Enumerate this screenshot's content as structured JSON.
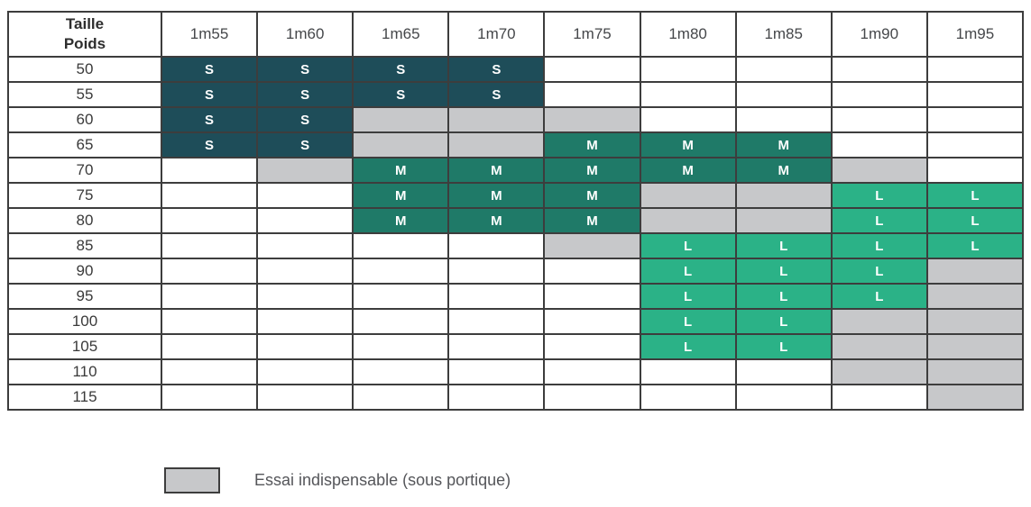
{
  "table": {
    "corner_line1": "Taille",
    "corner_line2": "Poids",
    "columns": [
      "1m55",
      "1m60",
      "1m65",
      "1m70",
      "1m75",
      "1m80",
      "1m85",
      "1m90",
      "1m95"
    ],
    "rows": [
      {
        "weight": "50",
        "cells": [
          "S",
          "S",
          "S",
          "S",
          "",
          "",
          "",
          "",
          ""
        ]
      },
      {
        "weight": "55",
        "cells": [
          "S",
          "S",
          "S",
          "S",
          "",
          "",
          "",
          "",
          ""
        ]
      },
      {
        "weight": "60",
        "cells": [
          "S",
          "S",
          "E",
          "E",
          "E",
          "",
          "",
          "",
          ""
        ]
      },
      {
        "weight": "65",
        "cells": [
          "S",
          "S",
          "E",
          "E",
          "M",
          "M",
          "M",
          "",
          ""
        ]
      },
      {
        "weight": "70",
        "cells": [
          "",
          "E",
          "M",
          "M",
          "M",
          "M",
          "M",
          "E",
          ""
        ]
      },
      {
        "weight": "75",
        "cells": [
          "",
          "",
          "M",
          "M",
          "M",
          "E",
          "E",
          "L",
          "L"
        ]
      },
      {
        "weight": "80",
        "cells": [
          "",
          "",
          "M",
          "M",
          "M",
          "E",
          "E",
          "L",
          "L"
        ]
      },
      {
        "weight": "85",
        "cells": [
          "",
          "",
          "",
          "",
          "E",
          "L",
          "L",
          "L",
          "L"
        ]
      },
      {
        "weight": "90",
        "cells": [
          "",
          "",
          "",
          "",
          "",
          "L",
          "L",
          "L",
          "E"
        ]
      },
      {
        "weight": "95",
        "cells": [
          "",
          "",
          "",
          "",
          "",
          "L",
          "L",
          "L",
          "E"
        ]
      },
      {
        "weight": "100",
        "cells": [
          "",
          "",
          "",
          "",
          "",
          "L",
          "L",
          "E",
          "E"
        ]
      },
      {
        "weight": "105",
        "cells": [
          "",
          "",
          "",
          "",
          "",
          "L",
          "L",
          "E",
          "E"
        ]
      },
      {
        "weight": "110",
        "cells": [
          "",
          "",
          "",
          "",
          "",
          "",
          "",
          "E",
          "E"
        ]
      },
      {
        "weight": "115",
        "cells": [
          "",
          "",
          "",
          "",
          "",
          "",
          "",
          "",
          "E"
        ]
      }
    ],
    "cell_codes": {
      "S": "size S",
      "M": "size M",
      "L": "size L",
      "E": "essai indispensable (gray cell, no text)",
      "": "empty white cell"
    }
  },
  "legend": {
    "label": "Essai indispensable (sous portique)"
  },
  "colors": {
    "size_s": "#1e4d59",
    "size_m": "#1f7a68",
    "size_l": "#2bb287",
    "essai_gray": "#c7c8ca",
    "grid_border": "#3d3d3d",
    "cell_letter": "#ffffff",
    "label_text": "#3a3a3a",
    "legend_text": "#55565a"
  },
  "chart_data": {
    "type": "table",
    "title": "",
    "x_header_label": "Taille",
    "y_header_label": "Poids",
    "categories": [
      "1m55",
      "1m60",
      "1m65",
      "1m70",
      "1m75",
      "1m80",
      "1m85",
      "1m90",
      "1m95"
    ],
    "row_labels": [
      "50",
      "55",
      "60",
      "65",
      "70",
      "75",
      "80",
      "85",
      "90",
      "95",
      "100",
      "105",
      "110",
      "115"
    ],
    "matrix": [
      [
        "S",
        "S",
        "S",
        "S",
        "",
        "",
        "",
        "",
        ""
      ],
      [
        "S",
        "S",
        "S",
        "S",
        "",
        "",
        "",
        "",
        ""
      ],
      [
        "S",
        "S",
        "E",
        "E",
        "E",
        "",
        "",
        "",
        ""
      ],
      [
        "S",
        "S",
        "E",
        "E",
        "M",
        "M",
        "M",
        "",
        ""
      ],
      [
        "",
        "E",
        "M",
        "M",
        "M",
        "M",
        "M",
        "E",
        ""
      ],
      [
        "",
        "",
        "M",
        "M",
        "M",
        "E",
        "E",
        "L",
        "L"
      ],
      [
        "",
        "",
        "M",
        "M",
        "M",
        "E",
        "E",
        "L",
        "L"
      ],
      [
        "",
        "",
        "",
        "",
        "E",
        "L",
        "L",
        "L",
        "L"
      ],
      [
        "",
        "",
        "",
        "",
        "",
        "L",
        "L",
        "L",
        "E"
      ],
      [
        "",
        "",
        "",
        "",
        "",
        "L",
        "L",
        "L",
        "E"
      ],
      [
        "",
        "",
        "",
        "",
        "",
        "L",
        "L",
        "E",
        "E"
      ],
      [
        "",
        "",
        "",
        "",
        "",
        "L",
        "L",
        "E",
        "E"
      ],
      [
        "",
        "",
        "",
        "",
        "",
        "",
        "",
        "E",
        "E"
      ],
      [
        "",
        "",
        "",
        "",
        "",
        "",
        "",
        "",
        "E"
      ]
    ],
    "legend_entries": [
      {
        "code": "S",
        "color": "#1e4d59",
        "meaning": "Taille S"
      },
      {
        "code": "M",
        "color": "#1f7a68",
        "meaning": "Taille M"
      },
      {
        "code": "L",
        "color": "#2bb287",
        "meaning": "Taille L"
      },
      {
        "code": "E",
        "color": "#c7c8ca",
        "meaning": "Essai indispensable (sous portique)"
      }
    ],
    "grid": true,
    "legend_position": "bottom-left"
  }
}
